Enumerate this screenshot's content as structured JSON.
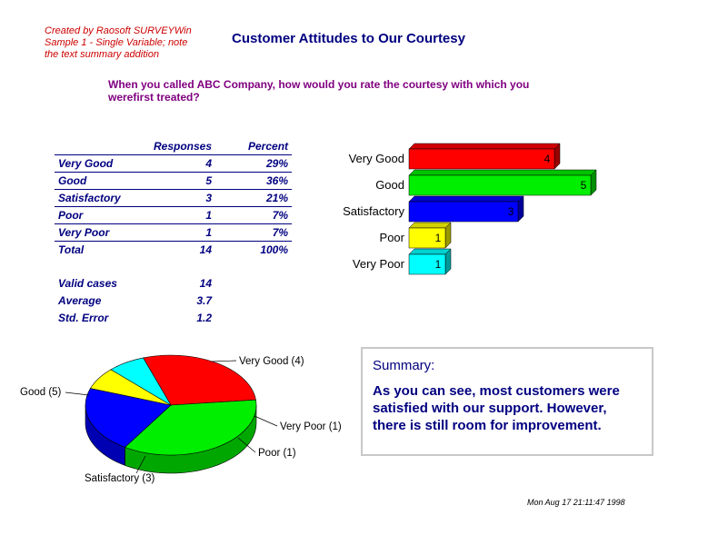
{
  "credits": [
    "Created by Raosoft SURVEYWin",
    "Sample 1 - Single Variable; note",
    "the text summary addition"
  ],
  "title": "Customer Attitudes to Our Courtesy",
  "question": "When you called ABC Company, how would you rate the courtesy with which you werefirst treated?",
  "table": {
    "headers": [
      "",
      "Responses",
      "Percent"
    ],
    "rows": [
      {
        "label": "Very Good",
        "responses": "4",
        "percent": "29%"
      },
      {
        "label": "Good",
        "responses": "5",
        "percent": "36%"
      },
      {
        "label": "Satisfactory",
        "responses": "3",
        "percent": "21%"
      },
      {
        "label": "Poor",
        "responses": "1",
        "percent": "7%"
      },
      {
        "label": "Very Poor",
        "responses": "1",
        "percent": "7%"
      }
    ],
    "total": {
      "label": "Total",
      "responses": "14",
      "percent": "100%"
    }
  },
  "stats": [
    {
      "label": "Valid cases",
      "value": "14"
    },
    {
      "label": "Average",
      "value": "3.7"
    },
    {
      "label": "Std. Error",
      "value": "1.2"
    }
  ],
  "summary": {
    "title": "Summary:",
    "text": "As you can see, most customers were satisfied with our support. However, there is still room for improvement."
  },
  "timestamp": "Mon Aug 17 21:11:47 1998",
  "chart_data": [
    {
      "type": "bar",
      "orientation": "horizontal",
      "categories": [
        "Very Good",
        "Good",
        "Satisfactory",
        "Poor",
        "Very Poor"
      ],
      "values": [
        4,
        5,
        3,
        1,
        1
      ],
      "data_labels": [
        "4",
        "5",
        "3",
        "1",
        "1"
      ],
      "colors": [
        "#ff0000",
        "#00ee00",
        "#0000ff",
        "#ffff00",
        "#00ffff"
      ],
      "xlim": [
        0,
        5
      ]
    },
    {
      "type": "pie",
      "style": "3d",
      "categories": [
        "Very Good",
        "Good",
        "Satisfactory",
        "Poor",
        "Very Poor"
      ],
      "values": [
        4,
        5,
        3,
        1,
        1
      ],
      "labels": [
        "Very Good (4)",
        "Good (5)",
        "Satisfactory (3)",
        "Poor (1)",
        "Very Poor (1)"
      ],
      "colors": [
        "#ff0000",
        "#00ee00",
        "#0000ff",
        "#ffff00",
        "#00ffff"
      ]
    }
  ]
}
